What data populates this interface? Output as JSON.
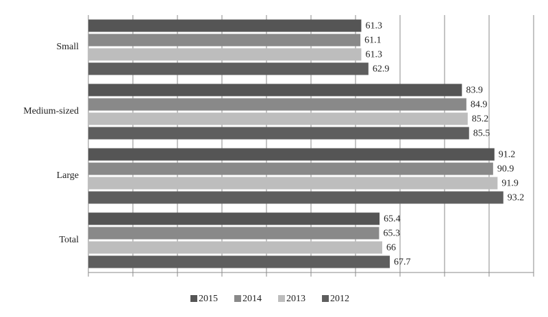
{
  "chart_data": {
    "type": "hbar",
    "categories": [
      "Small",
      "Medium-sized",
      "Large",
      "Total"
    ],
    "series": [
      {
        "name": "2015",
        "color": "#555555",
        "values": [
          61.3,
          83.9,
          91.2,
          65.4
        ]
      },
      {
        "name": "2014",
        "color": "#898989",
        "values": [
          61.1,
          84.9,
          90.9,
          65.3
        ]
      },
      {
        "name": "2013",
        "color": "#bdbdbd",
        "values": [
          61.3,
          85.2,
          91.9,
          66
        ]
      },
      {
        "name": "2012",
        "color": "#5e5e5e",
        "values": [
          62.9,
          85.5,
          93.2,
          67.7
        ]
      }
    ],
    "xlim": [
      0,
      100
    ],
    "xticks": [
      0,
      10,
      20,
      30,
      40,
      50,
      60,
      70,
      80,
      90,
      100
    ],
    "grid": true,
    "legend": "bottom"
  }
}
